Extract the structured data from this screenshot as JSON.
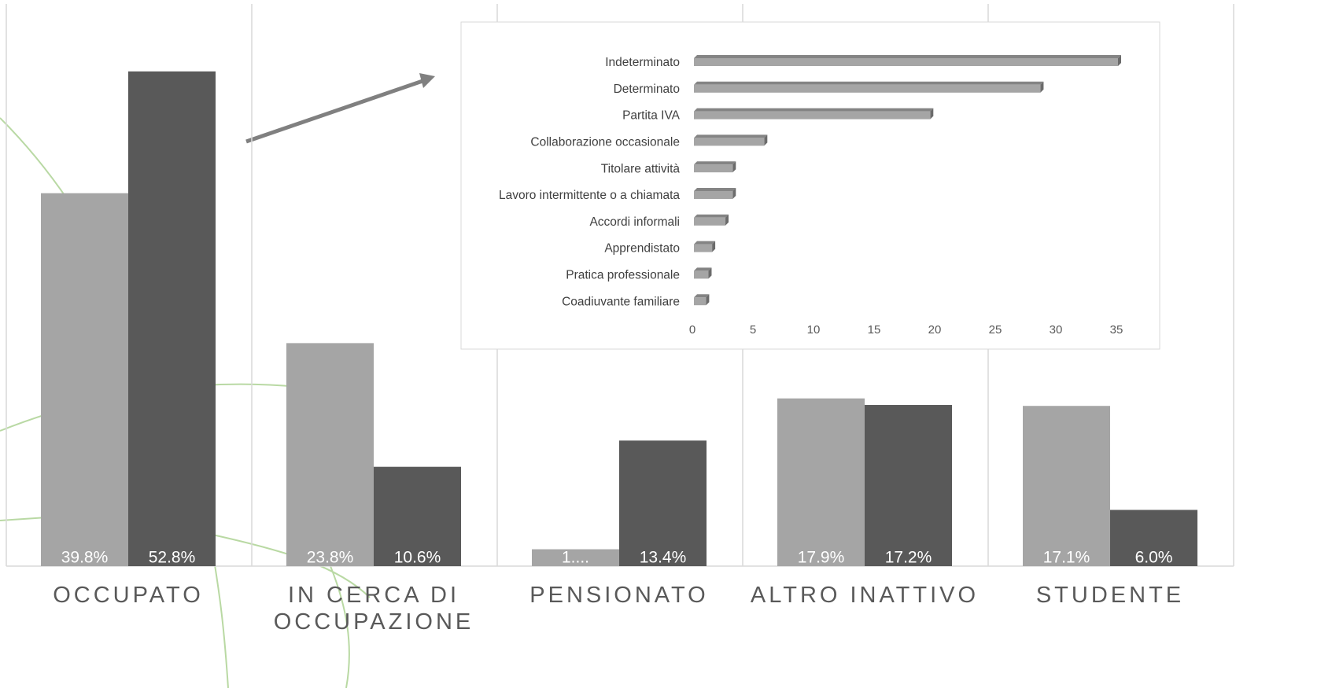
{
  "chart_data": [
    {
      "type": "bar",
      "categories": [
        "OCCUPATO",
        "IN CERCA DI OCCUPAZIONE",
        "PENSIONATO",
        "ALTRO INATTIVO",
        "STUDENTE"
      ],
      "series": [
        {
          "color": "#a5a5a5",
          "values": [
            39.8,
            23.8,
            1.8,
            17.9,
            17.1
          ],
          "value_labels": [
            "39.8%",
            "23.8%",
            "1....",
            "17.9%",
            "17.1%"
          ]
        },
        {
          "color": "#595959",
          "values": [
            52.8,
            10.6,
            13.4,
            17.2,
            6.0
          ],
          "value_labels": [
            "52.8%",
            "10.6%",
            "13.4%",
            "17.2%",
            "6.0%"
          ]
        }
      ],
      "ylim": [
        0,
        60
      ]
    },
    {
      "type": "bar",
      "orientation": "horizontal",
      "categories": [
        "Indeterminato",
        "Determinato",
        "Partita IVA",
        "Collaborazione occasionale",
        "Titolare attività",
        "Lavoro intermittente o a chiamata",
        "Accordi informali",
        "Apprendistato",
        "Pratica professionale",
        "Coadiuvante familiare"
      ],
      "values": [
        35,
        28.6,
        19.5,
        5.8,
        3.2,
        3.2,
        2.6,
        1.5,
        1.2,
        1.0
      ],
      "color": "#a5a5a5",
      "xlim": [
        0,
        35
      ],
      "xticks": [
        0,
        5,
        10,
        15,
        20,
        25,
        30,
        35
      ]
    }
  ]
}
